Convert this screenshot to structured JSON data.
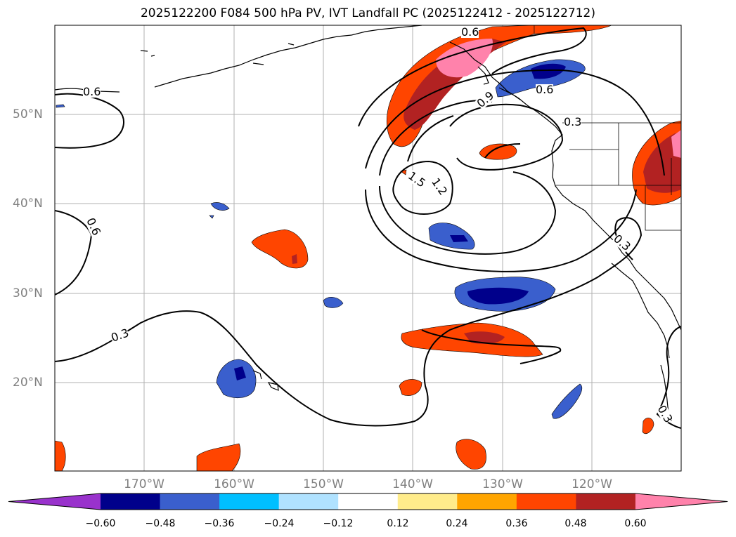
{
  "title": "2025122200 F084 500 hPa PV, IVT Landfall PC (2025122412 - 2025122712)",
  "lat_labels": [
    "50°N",
    "40°N",
    "30°N",
    "20°N"
  ],
  "lon_labels": [
    "170°W",
    "160°W",
    "150°W",
    "140°W",
    "130°W",
    "120°W"
  ],
  "contour_labels": [
    "0.6",
    "0.6",
    "0.6",
    "0.6",
    "0.3",
    "0.3",
    "0.3",
    "0.3",
    "1.5",
    "1.2",
    "0.9"
  ],
  "colorbar": {
    "ticks": [
      "−0.60",
      "−0.48",
      "−0.36",
      "−0.24",
      "−0.12",
      "0.12",
      "0.24",
      "0.36",
      "0.48",
      "0.60"
    ],
    "colors": [
      "#9932cc",
      "#00008b",
      "#3a5fcd",
      "#00bfff",
      "#b0e2ff",
      "#ffffff",
      "#ffec8b",
      "#ffa500",
      "#ff4500",
      "#b22222",
      "#ff82ab"
    ]
  }
}
